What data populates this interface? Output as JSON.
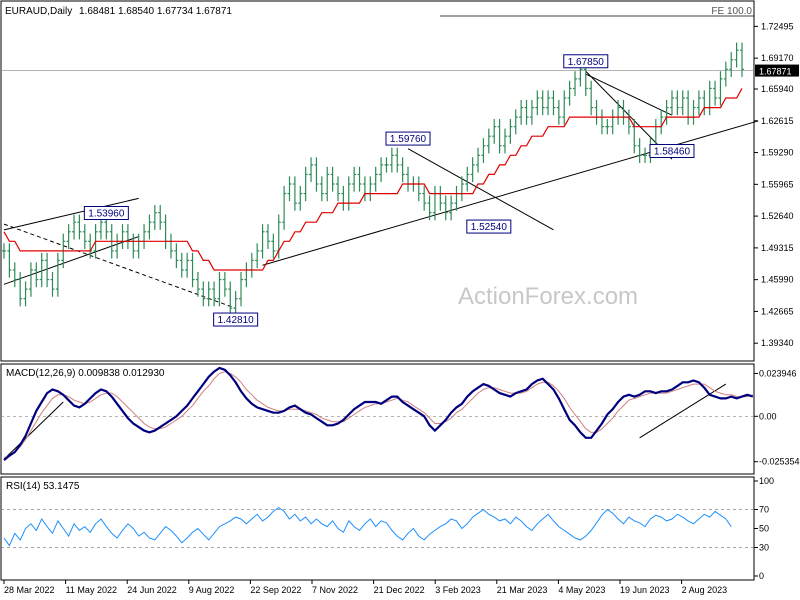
{
  "header": {
    "symbol": "EURAUD,Daily",
    "ohlc": "1.68481 1.68540 1.67734 1.67871",
    "fe_label": "FE 100.0",
    "watermark": "ActionForex.com"
  },
  "colors": {
    "candle": "#2e8b57",
    "ma": "#e00000",
    "macd_line": "#00007f",
    "macd_signal": "#d08080",
    "rsi": "#1e90ff",
    "trend": "#000000",
    "label_border": "#000080"
  },
  "chart_data": [
    {
      "type": "line",
      "panel": "price",
      "title": "EURAUD,Daily",
      "ylim": [
        1.38,
        1.74
      ],
      "y_ticks": [
        "1.72495",
        "1.69170",
        "1.65940",
        "1.62615",
        "1.59290",
        "1.55965",
        "1.52640",
        "1.49315",
        "1.45990",
        "1.42665",
        "1.39340"
      ],
      "current_price": "1.67871",
      "x_ticks": [
        "28 Mar 2022",
        "11 May 2022",
        "24 Jun 2022",
        "9 Aug 2022",
        "22 Sep 2022",
        "7 Nov 2022",
        "21 Dec 2022",
        "3 Feb 2023",
        "21 Mar 2023",
        "4 May 2023",
        "19 Jun 2023",
        "2 Aug 2023"
      ],
      "series": [
        {
          "kind": "close",
          "values": [
            1.49,
            1.47,
            1.46,
            1.44,
            1.45,
            1.47,
            1.46,
            1.48,
            1.46,
            1.45,
            1.48,
            1.5,
            1.51,
            1.52,
            1.51,
            1.5,
            1.49,
            1.51,
            1.52,
            1.51,
            1.49,
            1.5,
            1.51,
            1.5,
            1.49,
            1.5,
            1.51,
            1.52,
            1.53,
            1.52,
            1.5,
            1.49,
            1.48,
            1.47,
            1.48,
            1.46,
            1.45,
            1.44,
            1.45,
            1.44,
            1.46,
            1.45,
            1.43,
            1.44,
            1.46,
            1.47,
            1.48,
            1.49,
            1.51,
            1.5,
            1.49,
            1.52,
            1.55,
            1.56,
            1.54,
            1.55,
            1.57,
            1.58,
            1.56,
            1.55,
            1.57,
            1.56,
            1.55,
            1.54,
            1.56,
            1.57,
            1.56,
            1.55,
            1.56,
            1.57,
            1.58,
            1.58,
            1.59,
            1.58,
            1.57,
            1.56,
            1.56,
            1.55,
            1.54,
            1.53,
            1.55,
            1.54,
            1.53,
            1.54,
            1.55,
            1.56,
            1.57,
            1.58,
            1.59,
            1.6,
            1.61,
            1.62,
            1.6,
            1.61,
            1.62,
            1.63,
            1.64,
            1.63,
            1.64,
            1.65,
            1.64,
            1.65,
            1.64,
            1.63,
            1.65,
            1.66,
            1.67,
            1.68,
            1.66,
            1.64,
            1.63,
            1.62,
            1.62,
            1.63,
            1.64,
            1.63,
            1.62,
            1.6,
            1.59,
            1.59,
            1.6,
            1.62,
            1.63,
            1.64,
            1.65,
            1.64,
            1.65,
            1.63,
            1.64,
            1.65,
            1.64,
            1.66,
            1.65,
            1.67,
            1.68,
            1.69,
            1.7,
            1.68
          ]
        },
        {
          "kind": "moving_average",
          "values": [
            1.51,
            1.5,
            1.5,
            1.49,
            1.49,
            1.49,
            1.49,
            1.49,
            1.49,
            1.49,
            1.49,
            1.49,
            1.49,
            1.49,
            1.49,
            1.49,
            1.49,
            1.5,
            1.5,
            1.5,
            1.5,
            1.5,
            1.5,
            1.5,
            1.5,
            1.5,
            1.5,
            1.5,
            1.5,
            1.5,
            1.5,
            1.5,
            1.5,
            1.5,
            1.5,
            1.49,
            1.49,
            1.48,
            1.48,
            1.47,
            1.47,
            1.47,
            1.47,
            1.47,
            1.47,
            1.47,
            1.47,
            1.47,
            1.47,
            1.48,
            1.48,
            1.49,
            1.5,
            1.5,
            1.51,
            1.51,
            1.52,
            1.52,
            1.52,
            1.53,
            1.53,
            1.53,
            1.54,
            1.54,
            1.54,
            1.54,
            1.54,
            1.55,
            1.55,
            1.55,
            1.55,
            1.55,
            1.55,
            1.55,
            1.56,
            1.56,
            1.56,
            1.56,
            1.56,
            1.55,
            1.55,
            1.55,
            1.55,
            1.55,
            1.55,
            1.55,
            1.55,
            1.55,
            1.56,
            1.56,
            1.57,
            1.57,
            1.58,
            1.58,
            1.59,
            1.59,
            1.6,
            1.6,
            1.61,
            1.61,
            1.61,
            1.62,
            1.62,
            1.62,
            1.62,
            1.63,
            1.63,
            1.63,
            1.63,
            1.63,
            1.63,
            1.63,
            1.63,
            1.63,
            1.63,
            1.63,
            1.63,
            1.62,
            1.62,
            1.62,
            1.62,
            1.62,
            1.62,
            1.63,
            1.63,
            1.63,
            1.63,
            1.63,
            1.63,
            1.63,
            1.64,
            1.64,
            1.64,
            1.64,
            1.65,
            1.65,
            1.65,
            1.66
          ]
        }
      ],
      "annotations": [
        {
          "label": "1.53960",
          "x": 19,
          "y": 1.5396
        },
        {
          "label": "1.42810",
          "x": 43,
          "y": 1.4281
        },
        {
          "label": "1.59760",
          "x": 75,
          "y": 1.5976
        },
        {
          "label": "1.52540",
          "x": 90,
          "y": 1.5254
        },
        {
          "label": "1.67850",
          "x": 108,
          "y": 1.6785
        },
        {
          "label": "1.58460",
          "x": 124,
          "y": 1.5846
        }
      ]
    },
    {
      "type": "line",
      "panel": "macd",
      "title": "MACD(12,26,9) 0.009838 0.012930",
      "ylim": [
        -0.03,
        0.027
      ],
      "y_ticks": [
        "0.023946",
        "0.00",
        "-0.025354"
      ],
      "series": [
        {
          "name": "MACD",
          "values": [
            -0.0245,
            -0.022,
            -0.02,
            -0.016,
            -0.011,
            -0.004,
            0.003,
            0.008,
            0.013,
            0.015,
            0.014,
            0.012,
            0.009,
            0.006,
            0.005,
            0.007,
            0.01,
            0.013,
            0.015,
            0.014,
            0.011,
            0.007,
            0.003,
            -0.001,
            -0.004,
            -0.006,
            -0.008,
            -0.009,
            -0.008,
            -0.006,
            -0.004,
            -0.002,
            0.0,
            0.003,
            0.006,
            0.01,
            0.014,
            0.018,
            0.022,
            0.025,
            0.027,
            0.026,
            0.023,
            0.019,
            0.014,
            0.01,
            0.007,
            0.005,
            0.004,
            0.003,
            0.002,
            0.002,
            0.003,
            0.005,
            0.006,
            0.004,
            0.002,
            0.001,
            -0.001,
            -0.003,
            -0.005,
            -0.005,
            -0.004,
            -0.002,
            0.001,
            0.004,
            0.006,
            0.008,
            0.008,
            0.008,
            0.007,
            0.009,
            0.011,
            0.011,
            0.008,
            0.006,
            0.004,
            0.002,
            0.0,
            -0.005,
            -0.008,
            -0.005,
            -0.002,
            0.002,
            0.005,
            0.007,
            0.011,
            0.014,
            0.016,
            0.018,
            0.017,
            0.015,
            0.013,
            0.012,
            0.011,
            0.013,
            0.014,
            0.015,
            0.018,
            0.02,
            0.021,
            0.018,
            0.015,
            0.01,
            0.004,
            -0.002,
            -0.005,
            -0.009,
            -0.012,
            -0.012,
            -0.008,
            -0.004,
            0.001,
            0.004,
            0.008,
            0.011,
            0.012,
            0.011,
            0.012,
            0.014,
            0.014,
            0.013,
            0.014,
            0.014,
            0.015,
            0.017,
            0.019,
            0.019,
            0.02,
            0.019,
            0.016,
            0.012,
            0.011,
            0.01,
            0.01,
            0.011,
            0.01,
            0.011,
            0.012,
            0.011
          ]
        },
        {
          "name": "Signal",
          "values": [
            -0.023,
            -0.022,
            -0.02,
            -0.017,
            -0.013,
            -0.008,
            -0.003,
            0.002,
            0.006,
            0.01,
            0.012,
            0.012,
            0.011,
            0.009,
            0.008,
            0.007,
            0.008,
            0.01,
            0.012,
            0.013,
            0.013,
            0.011,
            0.008,
            0.005,
            0.002,
            -0.001,
            -0.004,
            -0.006,
            -0.007,
            -0.007,
            -0.006,
            -0.004,
            -0.002,
            0.0,
            0.003,
            0.006,
            0.01,
            0.014,
            0.017,
            0.021,
            0.024,
            0.025,
            0.024,
            0.022,
            0.019,
            0.015,
            0.012,
            0.009,
            0.007,
            0.005,
            0.004,
            0.003,
            0.003,
            0.004,
            0.004,
            0.004,
            0.003,
            0.002,
            0.001,
            -0.001,
            -0.002,
            -0.003,
            -0.003,
            -0.003,
            -0.001,
            0.001,
            0.003,
            0.005,
            0.006,
            0.007,
            0.007,
            0.008,
            0.009,
            0.01,
            0.009,
            0.008,
            0.006,
            0.004,
            0.002,
            -0.001,
            -0.004,
            -0.004,
            -0.003,
            -0.001,
            0.002,
            0.004,
            0.007,
            0.01,
            0.013,
            0.015,
            0.016,
            0.016,
            0.015,
            0.014,
            0.013,
            0.013,
            0.013,
            0.014,
            0.016,
            0.018,
            0.019,
            0.019,
            0.017,
            0.014,
            0.01,
            0.005,
            0.001,
            -0.003,
            -0.007,
            -0.009,
            -0.009,
            -0.007,
            -0.004,
            -0.001,
            0.003,
            0.006,
            0.009,
            0.01,
            0.011,
            0.012,
            0.013,
            0.013,
            0.013,
            0.013,
            0.014,
            0.015,
            0.016,
            0.017,
            0.018,
            0.018,
            0.018,
            0.016,
            0.014,
            0.013,
            0.012,
            0.012,
            0.011,
            0.011,
            0.011,
            0.012
          ]
        }
      ]
    },
    {
      "type": "line",
      "panel": "rsi",
      "title": "RSI(14) 53.1475",
      "ylim": [
        0,
        100
      ],
      "y_ticks": [
        "100",
        "70",
        "50",
        "30",
        "0"
      ],
      "series": [
        {
          "name": "RSI(14)",
          "values": [
            40,
            32,
            45,
            38,
            50,
            55,
            48,
            60,
            52,
            45,
            58,
            50,
            42,
            55,
            48,
            52,
            46,
            55,
            60,
            52,
            45,
            40,
            48,
            55,
            50,
            42,
            46,
            40,
            38,
            45,
            52,
            48,
            42,
            35,
            40,
            46,
            50,
            44,
            38,
            45,
            52,
            55,
            58,
            62,
            60,
            55,
            60,
            65,
            58,
            62,
            68,
            72,
            68,
            60,
            65,
            58,
            62,
            55,
            60,
            55,
            52,
            58,
            50,
            46,
            58,
            52,
            48,
            55,
            60,
            52,
            58,
            56,
            48,
            42,
            38,
            45,
            50,
            42,
            38,
            44,
            48,
            52,
            55,
            60,
            58,
            50,
            55,
            62,
            66,
            70,
            65,
            62,
            58,
            60,
            55,
            62,
            58,
            52,
            48,
            55,
            60,
            65,
            58,
            52,
            48,
            44,
            40,
            38,
            42,
            48,
            56,
            64,
            70,
            66,
            60,
            55,
            62,
            58,
            56,
            52,
            60,
            64,
            62,
            58,
            60,
            65,
            62,
            58,
            55,
            60,
            65,
            62,
            68,
            64,
            60,
            52
          ]
        }
      ]
    }
  ]
}
